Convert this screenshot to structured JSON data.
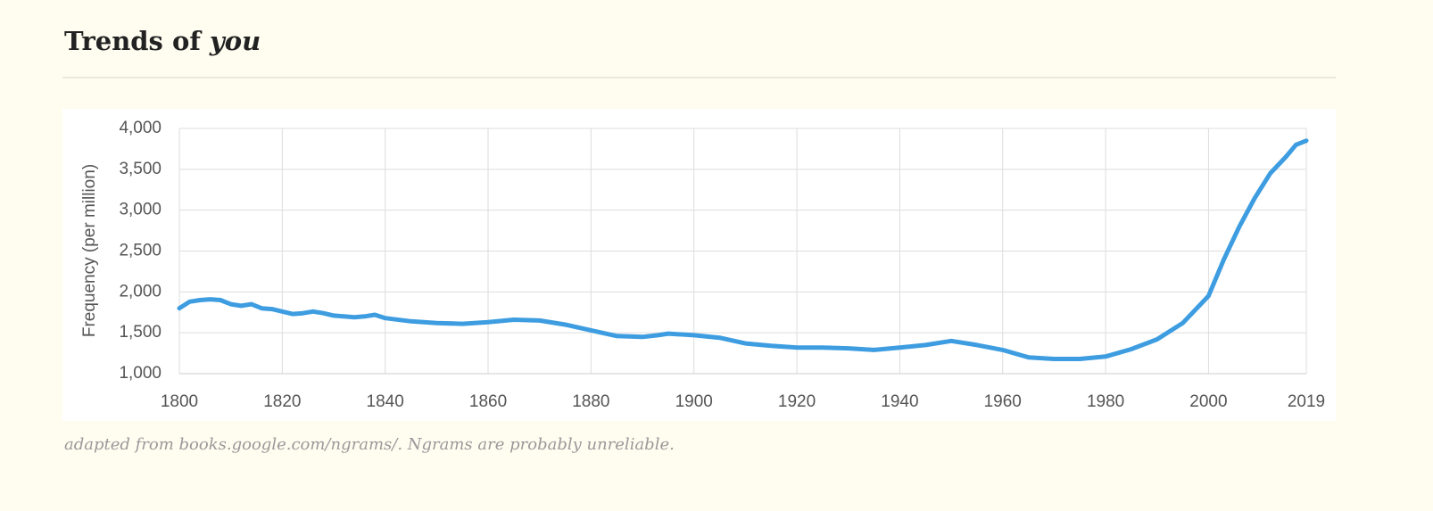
{
  "header": {
    "title": "Trends of",
    "title_emphasis": "you"
  },
  "chart_data": {
    "type": "line",
    "ylabel": "Frequency (per million)",
    "x": [
      1800,
      1802,
      1804,
      1806,
      1808,
      1810,
      1812,
      1814,
      1816,
      1818,
      1820,
      1822,
      1824,
      1826,
      1828,
      1830,
      1832,
      1834,
      1836,
      1838,
      1840,
      1845,
      1850,
      1855,
      1860,
      1865,
      1870,
      1875,
      1880,
      1885,
      1890,
      1893,
      1895,
      1900,
      1905,
      1910,
      1915,
      1920,
      1925,
      1930,
      1935,
      1940,
      1945,
      1950,
      1955,
      1960,
      1965,
      1970,
      1975,
      1980,
      1985,
      1990,
      1995,
      2000,
      2003,
      2006,
      2009,
      2012,
      2015,
      2017,
      2019
    ],
    "series": [
      {
        "name": "you",
        "color": "#3d9de0",
        "values": [
          1800,
          1880,
          1900,
          1910,
          1900,
          1850,
          1830,
          1850,
          1800,
          1790,
          1760,
          1730,
          1740,
          1760,
          1740,
          1710,
          1700,
          1690,
          1700,
          1720,
          1680,
          1640,
          1620,
          1610,
          1630,
          1660,
          1650,
          1600,
          1530,
          1460,
          1450,
          1470,
          1490,
          1470,
          1440,
          1370,
          1340,
          1320,
          1320,
          1310,
          1290,
          1320,
          1350,
          1400,
          1350,
          1290,
          1200,
          1180,
          1180,
          1210,
          1300,
          1420,
          1620,
          1950,
          2400,
          2800,
          3150,
          3450,
          3650,
          3800,
          3850
        ]
      }
    ],
    "xlim": [
      1800,
      2019
    ],
    "xticks": [
      1800,
      1820,
      1840,
      1860,
      1880,
      1900,
      1920,
      1940,
      1960,
      1980,
      2000,
      2019
    ],
    "ylim": [
      1000,
      4000
    ],
    "yticks": [
      {
        "value": 1000,
        "label": "1,000"
      },
      {
        "value": 1500,
        "label": "1,500"
      },
      {
        "value": 2000,
        "label": "2,000"
      },
      {
        "value": 2500,
        "label": "2,500"
      },
      {
        "value": 3000,
        "label": "3,000"
      },
      {
        "value": 3500,
        "label": "3,500"
      },
      {
        "value": 4000,
        "label": "4,000"
      }
    ],
    "grid": true
  },
  "caption": "adapted from books.google.com/ngrams/. Ngrams are probably unreliable."
}
